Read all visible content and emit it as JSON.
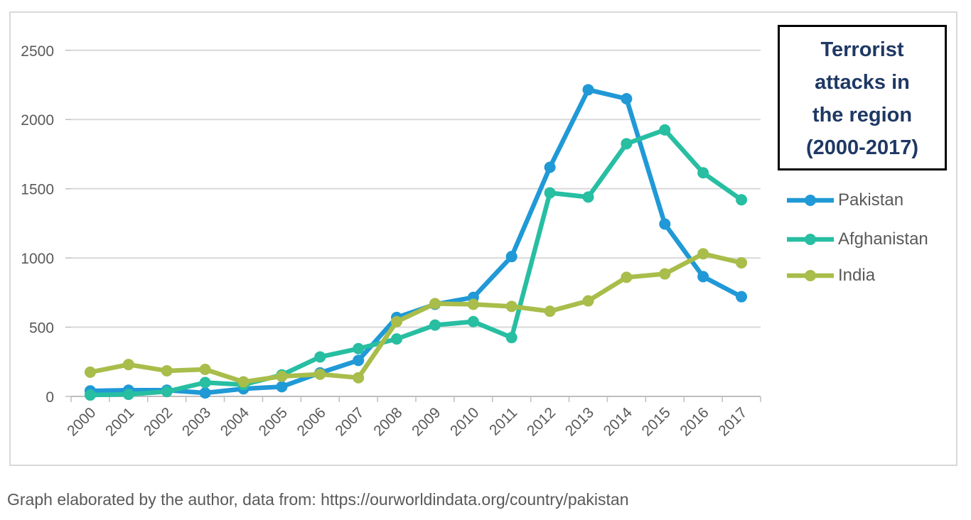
{
  "chart_data": {
    "type": "line",
    "title": "Terrorist attacks in the region (2000-2017)",
    "title_lines": [
      "Terrorist",
      "attacks in",
      "the region",
      "(2000-2017)"
    ],
    "categories": [
      "2000",
      "2001",
      "2002",
      "2003",
      "2004",
      "2005",
      "2006",
      "2007",
      "2008",
      "2009",
      "2010",
      "2011",
      "2012",
      "2013",
      "2014",
      "2015",
      "2016",
      "2017"
    ],
    "series": [
      {
        "name": "Pakistan",
        "color": "#2099D6",
        "values": [
          40,
          45,
          45,
          25,
          55,
          70,
          170,
          260,
          570,
          665,
          715,
          1010,
          1655,
          2215,
          2150,
          1245,
          865,
          720
        ]
      },
      {
        "name": "Afghanistan",
        "color": "#27BEA2",
        "values": [
          10,
          15,
          35,
          100,
          85,
          155,
          285,
          345,
          415,
          515,
          540,
          425,
          1470,
          1440,
          1825,
          1925,
          1615,
          1420
        ]
      },
      {
        "name": "India",
        "color": "#A8BD4A",
        "values": [
          175,
          230,
          185,
          195,
          105,
          145,
          160,
          135,
          540,
          670,
          665,
          650,
          615,
          690,
          860,
          885,
          1030,
          965
        ]
      }
    ],
    "xlabel": "",
    "ylabel": "",
    "ylim": [
      0,
      2500
    ],
    "yticks": [
      0,
      500,
      1000,
      1500,
      2000,
      2500
    ],
    "grid": true,
    "legend_position": "right"
  },
  "caption": "Graph elaborated by the author, data from: https://ourworldindata.org/country/pakistan",
  "colors": {
    "title_text": "#1F3864",
    "title_box_border": "#000000",
    "axis_text": "#595959",
    "legend_text": "#595959",
    "caption_text": "#595959",
    "gridline": "#D9D9D9",
    "axis_line": "#BFBFBF",
    "frame_border": "#D9D9D9"
  }
}
